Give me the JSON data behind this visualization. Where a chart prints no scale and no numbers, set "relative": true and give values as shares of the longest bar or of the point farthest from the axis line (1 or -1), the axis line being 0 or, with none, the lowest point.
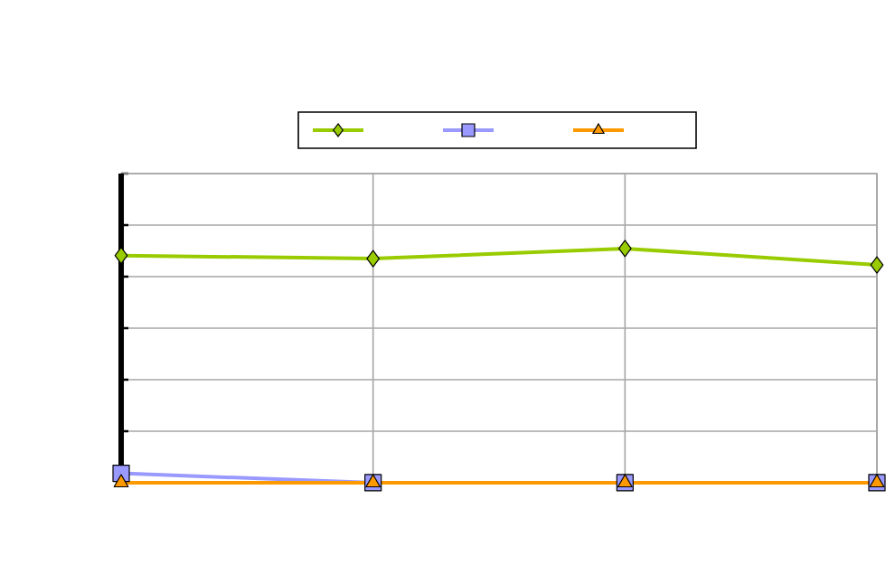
{
  "chart_data": {
    "type": "line",
    "relative": true,
    "categories": [
      null,
      null,
      null,
      null
    ],
    "grid": true,
    "series": [
      {
        "color": "#99cc00",
        "marker": "diamond",
        "values": [
          0.97,
          0.957,
          1,
          0.93
        ]
      },
      {
        "color": "#9999ff",
        "marker": "square",
        "values": [
          0.04,
          0,
          0,
          0
        ]
      },
      {
        "color": "#ff9900",
        "marker": "triangle",
        "values": [
          0,
          0,
          0,
          0
        ]
      }
    ]
  }
}
